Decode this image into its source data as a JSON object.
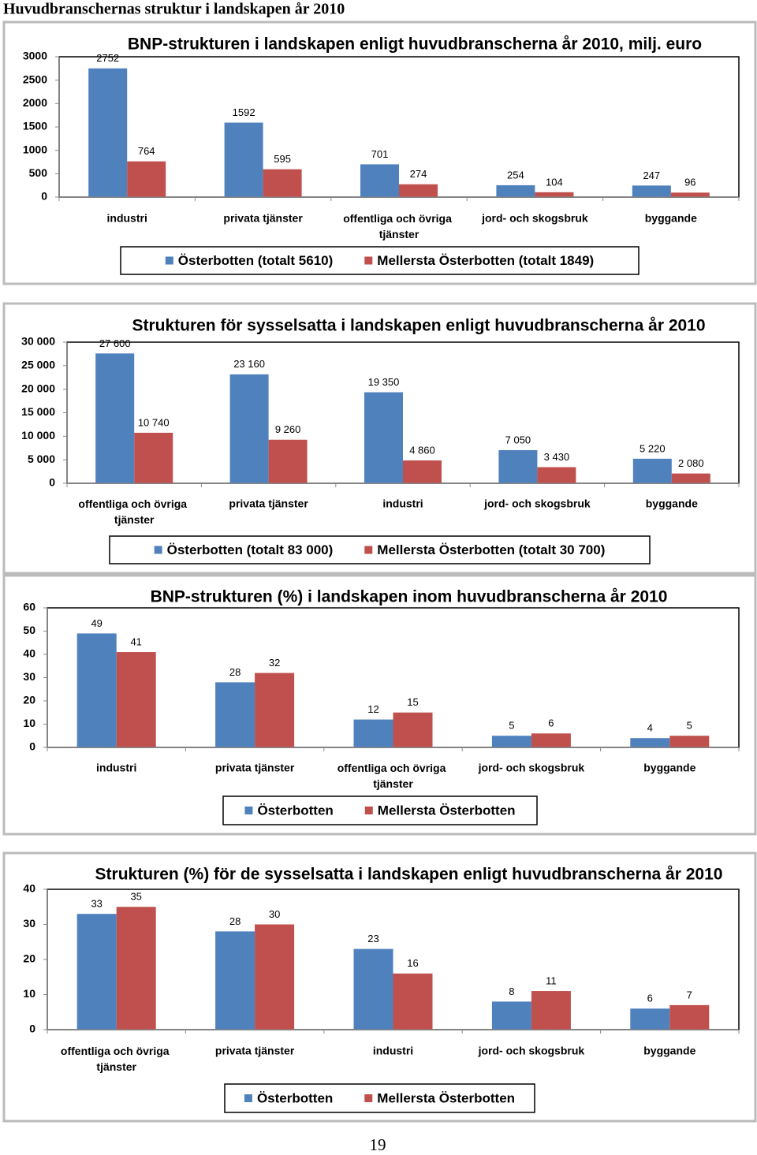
{
  "page": {
    "title": "Huvudbranschernas struktur i landskapen år 2010",
    "page_number": "19"
  },
  "chart_data": [
    {
      "type": "bar",
      "title": "BNP-strukturen i landskapen enligt huvudbranscherna år 2010, milj. euro",
      "categories": [
        "industri",
        "privata tjänster",
        "offentliga och övriga tjänster",
        "jord- och skogsbruk",
        "byggande"
      ],
      "series": [
        {
          "name": "Österbotten (totalt 5610)",
          "color": "#4f81bd",
          "values": [
            2752,
            1592,
            701,
            254,
            247
          ]
        },
        {
          "name": "Mellersta Österbotten (totalt 1849)",
          "color": "#c0504d",
          "values": [
            764,
            595,
            274,
            104,
            96
          ]
        }
      ],
      "ylim": [
        0,
        3000
      ],
      "yticks": [
        0,
        500,
        1000,
        1500,
        2000,
        2500,
        3000
      ],
      "legend": "bottom"
    },
    {
      "type": "bar",
      "title": "Strukturen för sysselsatta i landskapen  enligt huvudbranscherna år 2010",
      "categories": [
        "offentliga och övriga tjänster",
        "privata tjänster",
        "industri",
        "jord- och skogsbruk",
        "byggande"
      ],
      "series": [
        {
          "name": "Österbotten (totalt 83 000)",
          "color": "#4f81bd",
          "values": [
            27600,
            23160,
            19350,
            7050,
            5220
          ],
          "value_labels": [
            "27 600",
            "23 160",
            "19 350",
            "7 050",
            "5 220"
          ]
        },
        {
          "name": "Mellersta Österbotten (totalt 30 700)",
          "color": "#c0504d",
          "values": [
            10740,
            9260,
            4860,
            3430,
            2080
          ],
          "value_labels": [
            "10 740",
            "9 260",
            "4 860",
            "3 430",
            "2 080"
          ]
        }
      ],
      "ylim": [
        0,
        30000
      ],
      "yticks": [
        0,
        {
          "value": 5000,
          "label": "5 000"
        },
        {
          "value": 10000,
          "label": "10 000"
        },
        {
          "value": 15000,
          "label": "15 000"
        },
        {
          "value": 20000,
          "label": "20 000"
        },
        {
          "value": 25000,
          "label": "25 000"
        },
        {
          "value": 30000,
          "label": "30 000"
        }
      ],
      "legend": "bottom"
    },
    {
      "type": "bar",
      "title": "BNP-strukturen (%) i landskapen inom huvudbranscherna år 2010",
      "categories": [
        "industri",
        "privata tjänster",
        "offentliga och övriga tjänster",
        "jord- och skogsbruk",
        "byggande"
      ],
      "series": [
        {
          "name": "Österbotten",
          "color": "#4f81bd",
          "values": [
            49,
            28,
            12,
            5,
            4
          ]
        },
        {
          "name": "Mellersta Österbotten",
          "color": "#c0504d",
          "values": [
            41,
            32,
            15,
            6,
            5
          ]
        }
      ],
      "ylim": [
        0,
        60
      ],
      "yticks": [
        0,
        10,
        20,
        30,
        40,
        50,
        60
      ],
      "legend": "bottom"
    },
    {
      "type": "bar",
      "title": "Strukturen (%) för de sysselsatta i landskapen enligt huvudbranscherna år 2010",
      "categories": [
        "offentliga och övriga tjänster",
        "privata tjänster",
        "industri",
        "jord- och skogsbruk",
        "byggande"
      ],
      "series": [
        {
          "name": "Österbotten",
          "color": "#4f81bd",
          "values": [
            33,
            28,
            23,
            8,
            6
          ]
        },
        {
          "name": "Mellersta Österbotten",
          "color": "#c0504d",
          "values": [
            35,
            30,
            16,
            11,
            7
          ]
        }
      ],
      "ylim": [
        0,
        40
      ],
      "yticks": [
        0,
        10,
        20,
        30,
        40
      ],
      "legend": "bottom"
    }
  ]
}
